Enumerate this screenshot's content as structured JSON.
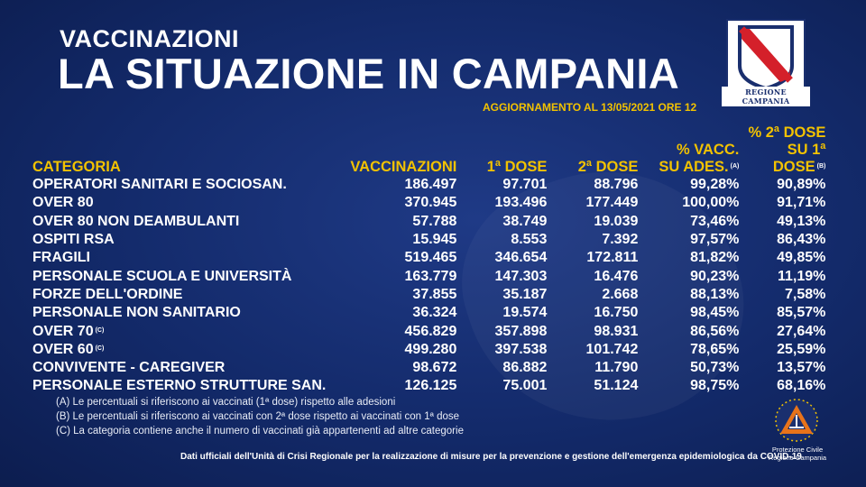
{
  "header": {
    "subtitle": "VACCINAZIONI",
    "title": "LA SITUAZIONE IN CAMPANIA",
    "update": "AGGIORNAMENTO AL 13/05/2021 ORE 12",
    "logo_text": "REGIONE CAMPANIA"
  },
  "table": {
    "headers": {
      "categoria": "CATEGORIA",
      "vaccinazioni": "VACCINAZIONI",
      "dose1": "1ª DOSE",
      "dose2": "2ª DOSE",
      "pct_vacc_l1": "% VACC.",
      "pct_vacc_l2": "SU ADES.",
      "pct_vacc_note": "(A)",
      "pct_2dose_l1": "% 2ª DOSE",
      "pct_2dose_l2": "SU 1ª DOSE",
      "pct_2dose_note": "(B)"
    },
    "rows": [
      {
        "cat": "OPERATORI SANITARI E SOCIOSAN.",
        "note": "",
        "vacc": "186.497",
        "d1": "97.701",
        "d2": "88.796",
        "pa": "99,28%",
        "pb": "90,89%"
      },
      {
        "cat": "OVER 80",
        "note": "",
        "vacc": "370.945",
        "d1": "193.496",
        "d2": "177.449",
        "pa": "100,00%",
        "pb": "91,71%"
      },
      {
        "cat": "OVER 80 NON DEAMBULANTI",
        "note": "",
        "vacc": "57.788",
        "d1": "38.749",
        "d2": "19.039",
        "pa": "73,46%",
        "pb": "49,13%"
      },
      {
        "cat": "OSPITI RSA",
        "note": "",
        "vacc": "15.945",
        "d1": "8.553",
        "d2": "7.392",
        "pa": "97,57%",
        "pb": "86,43%"
      },
      {
        "cat": "FRAGILI",
        "note": "",
        "vacc": "519.465",
        "d1": "346.654",
        "d2": "172.811",
        "pa": "81,82%",
        "pb": "49,85%"
      },
      {
        "cat": "PERSONALE SCUOLA E UNIVERSITÀ",
        "note": "",
        "vacc": "163.779",
        "d1": "147.303",
        "d2": "16.476",
        "pa": "90,23%",
        "pb": "11,19%"
      },
      {
        "cat": "FORZE DELL'ORDINE",
        "note": "",
        "vacc": "37.855",
        "d1": "35.187",
        "d2": "2.668",
        "pa": "88,13%",
        "pb": "7,58%"
      },
      {
        "cat": "PERSONALE NON SANITARIO",
        "note": "",
        "vacc": "36.324",
        "d1": "19.574",
        "d2": "16.750",
        "pa": "98,45%",
        "pb": "85,57%"
      },
      {
        "cat": "OVER 70",
        "note": "(C)",
        "vacc": "456.829",
        "d1": "357.898",
        "d2": "98.931",
        "pa": "86,56%",
        "pb": "27,64%"
      },
      {
        "cat": "OVER 60",
        "note": "(C)",
        "vacc": "499.280",
        "d1": "397.538",
        "d2": "101.742",
        "pa": "78,65%",
        "pb": "25,59%"
      },
      {
        "cat": "CONVIVENTE - CAREGIVER",
        "note": "",
        "vacc": "98.672",
        "d1": "86.882",
        "d2": "11.790",
        "pa": "50,73%",
        "pb": "13,57%"
      },
      {
        "cat": "PERSONALE ESTERNO STRUTTURE SAN.",
        "note": "",
        "vacc": "126.125",
        "d1": "75.001",
        "d2": "51.124",
        "pa": "98,75%",
        "pb": "68,16%"
      }
    ]
  },
  "notes": [
    "(A) Le percentuali si riferiscono ai vaccinati (1ª dose) rispetto alle adesioni",
    "(B) Le percentuali si riferiscono ai vaccinati con 2ª dose rispetto ai vaccinati con 1ª dose",
    "(C) La categoria contiene anche il numero di vaccinati già appartenenti ad altre categorie"
  ],
  "source": "Dati ufficiali dell'Unità di Crisi Regionale per la realizzazione di misure per la prevenzione e gestione dell'emergenza epidemiologica da COVID-19",
  "protezione_civile": {
    "line1": "Protezione Civile",
    "line2": "Regione Campania"
  },
  "colors": {
    "background": "#132a6a",
    "header_yellow": "#f2c200",
    "text": "#ffffff"
  },
  "icons": {
    "region_logo": "regione-campania-shield-icon",
    "civil_protection": "protezione-civile-icon"
  }
}
